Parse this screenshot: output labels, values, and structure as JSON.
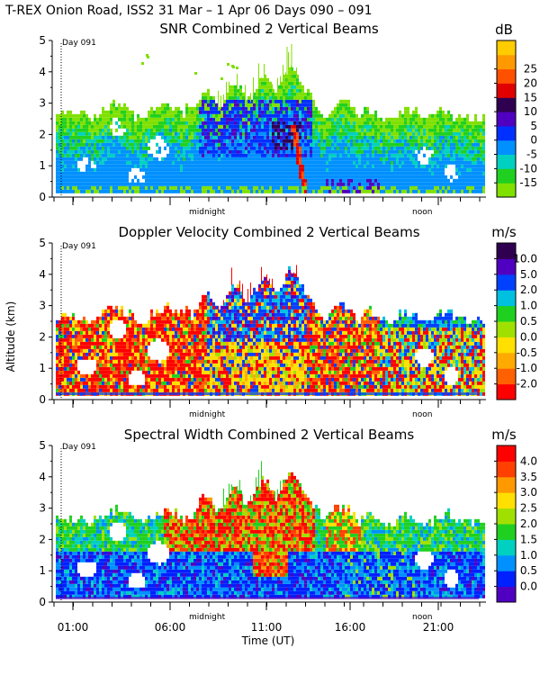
{
  "figure": {
    "title": "T-REX Onion Road, ISS2  31 Mar –  1 Apr 06 Days 090 – 091",
    "ylabel": "Altitude (km)",
    "xlabel": "Time (UT)",
    "day_marker": "Day 091",
    "midnight_label": "midnight",
    "noon_label": "noon"
  },
  "chart_data": [
    {
      "type": "heatmap",
      "title": "SNR Combined 2 Vertical Beams",
      "unit": "dB",
      "ylabel": "Altitude (km)",
      "ylim": [
        0,
        5
      ],
      "yticks": [
        "0",
        "1",
        "2",
        "3",
        "4",
        "5"
      ],
      "colorbar": {
        "labels": [
          "-15",
          "-10",
          "-5",
          "0",
          "5",
          "10",
          "15",
          "20",
          "25"
        ],
        "colors": [
          "#80e000",
          "#20d020",
          "#00d0c0",
          "#0090ff",
          "#0030ff",
          "#5000c0",
          "#300050",
          "#e00000",
          "#ff5000",
          "#ff9900",
          "#ffcc00"
        ]
      }
    },
    {
      "type": "heatmap",
      "title": "Doppler Velocity Combined 2 Vertical Beams",
      "unit": "m/s",
      "ylabel": "Altitude (km)",
      "ylim": [
        0,
        5
      ],
      "yticks": [
        "0",
        "1",
        "2",
        "3",
        "4",
        "5"
      ],
      "colorbar": {
        "labels": [
          "-2.0",
          "-1.0",
          "-0.5",
          "0.0",
          "0.5",
          "1.0",
          "2.0",
          "5.0",
          "10.0"
        ],
        "colors": [
          "#ff0000",
          "#ff6000",
          "#ffaa00",
          "#ffe000",
          "#a0e000",
          "#20d020",
          "#00c0e0",
          "#0040ff",
          "#5000c0",
          "#300050"
        ]
      }
    },
    {
      "type": "heatmap",
      "title": "Spectral Width Combined 2 Vertical Beams",
      "unit": "m/s",
      "ylabel": "Altitude (km)",
      "ylim": [
        0,
        5
      ],
      "yticks": [
        "0",
        "1",
        "2",
        "3",
        "4",
        "5"
      ],
      "xticks": [
        "01:00",
        "06:00",
        "11:00",
        "16:00",
        "21:00"
      ],
      "colorbar": {
        "labels": [
          "0.0",
          "0.5",
          "1.0",
          "1.5",
          "2.0",
          "2.5",
          "3.0",
          "3.5",
          "4.0"
        ],
        "colors": [
          "#5000c0",
          "#0020ff",
          "#0090ff",
          "#00d0c0",
          "#20d020",
          "#a0e000",
          "#ffe000",
          "#ff9900",
          "#ff4000",
          "#ff0000"
        ]
      }
    }
  ]
}
